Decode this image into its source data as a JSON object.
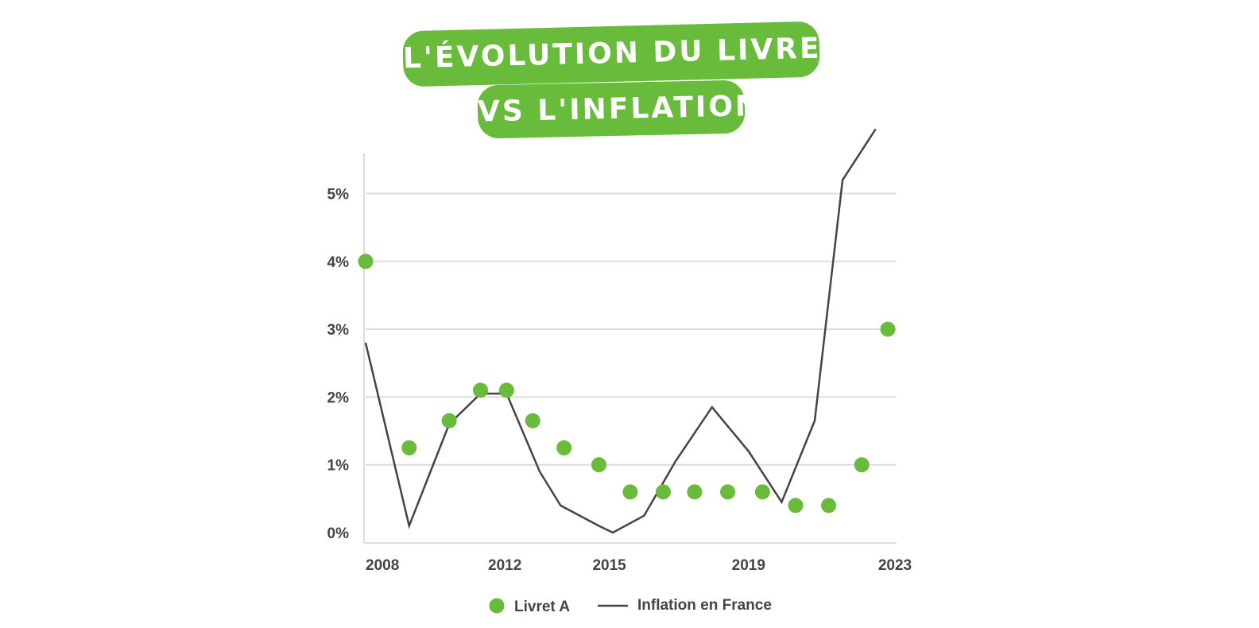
{
  "title_lines": [
    "L'ÉVOLUTION DU LIVRET A",
    "VS L'INFLATION"
  ],
  "colors": {
    "accent": "#69bb3c",
    "line": "#444444",
    "grid": "#dddddd",
    "text": "#444444"
  },
  "chart_data": {
    "type": "line",
    "title": "L'ÉVOLUTION DU LIVRET A VS L'INFLATION",
    "xlabel": "",
    "ylabel": "",
    "x": [
      2008,
      2009,
      2010,
      2011,
      2012,
      2013,
      2014,
      2015,
      2016,
      2017,
      2018,
      2019,
      2020,
      2021,
      2022,
      2023
    ],
    "xlim": [
      2008,
      2023
    ],
    "ylim": [
      0,
      5.5
    ],
    "x_ticks": [
      "2008",
      "2012",
      "2015",
      "2019",
      "2023"
    ],
    "y_ticks": [
      "0%",
      "1%",
      "2%",
      "3%",
      "4%",
      "5%"
    ],
    "grid": true,
    "legend_position": "bottom",
    "series": [
      {
        "name": "Livret A",
        "style": "dots",
        "color": "#69bb3c",
        "x": [
          2008,
          2009.25,
          2010.4,
          2011.3,
          2012.05,
          2012.8,
          2013.7,
          2014.7,
          2015.6,
          2016.55,
          2017.45,
          2018.4,
          2019.4,
          2020.35,
          2021.3,
          2022.25,
          2023
        ],
        "values": [
          4,
          1.25,
          1.65,
          2.1,
          2.1,
          1.65,
          1.25,
          1,
          0.6,
          0.6,
          0.6,
          0.6,
          0.6,
          0.4,
          0.4,
          1,
          3
        ]
      },
      {
        "name": "Inflation en France",
        "style": "line",
        "color": "#444444",
        "x": [
          2008,
          2009.25,
          2010.4,
          2011.3,
          2012.05,
          2013,
          2013.6,
          2014.7,
          2015.1,
          2016,
          2016.9,
          2017.95,
          2019,
          2019.95,
          2020.9,
          2021.7,
          2022.65
        ],
        "values": [
          2.8,
          0.1,
          1.6,
          2.05,
          2.05,
          0.9,
          0.4,
          0.1,
          0,
          0.25,
          1.05,
          1.85,
          1.2,
          0.45,
          1.65,
          5.2,
          5.95
        ]
      }
    ]
  }
}
